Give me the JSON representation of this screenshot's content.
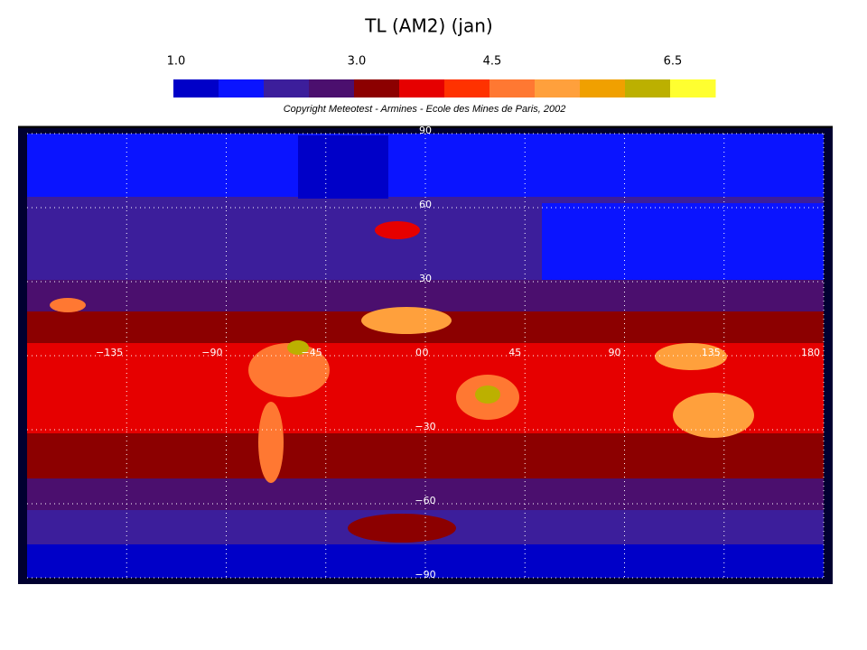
{
  "title": "TL (AM2)   (jan)",
  "colorbar": {
    "colors": [
      "#0000c8",
      "#0a14ff",
      "#3c1e9b",
      "#4b0f6e",
      "#8c0000",
      "#e60000",
      "#ff3200",
      "#ff7832",
      "#ffa03c",
      "#f0a000",
      "#bcb000",
      "#ffff30"
    ],
    "lim": [
      1.0,
      7.0
    ],
    "ticks": [
      {
        "value": 1.0,
        "label": "1.0"
      },
      {
        "value": 3.0,
        "label": "3.0"
      },
      {
        "value": 4.5,
        "label": "4.5"
      },
      {
        "value": 6.5,
        "label": "6.5"
      }
    ]
  },
  "copyright": "Copyright Meteotest - Armines - Ecole des Mines de Paris, 2002",
  "map": {
    "xlim": [
      -180,
      180
    ],
    "ylim": [
      -90,
      90
    ],
    "grid": true,
    "xticks": [
      {
        "value": -135,
        "label": "−135"
      },
      {
        "value": -90,
        "label": "−90"
      },
      {
        "value": -45,
        "label": "−45"
      },
      0,
      45,
      90,
      135,
      180
    ],
    "yticks": [
      90,
      60,
      30,
      0,
      {
        "value": -30,
        "label": "−30"
      },
      {
        "value": -60,
        "label": "−60"
      },
      {
        "value": -90,
        "label": "−90"
      }
    ]
  }
}
